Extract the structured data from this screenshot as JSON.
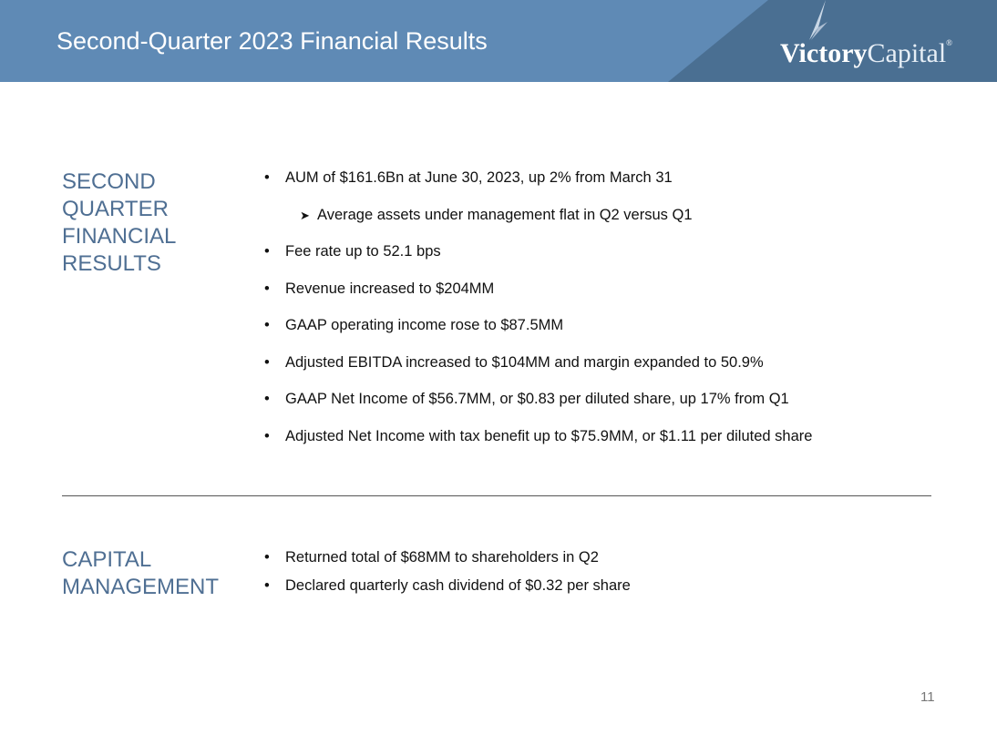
{
  "header": {
    "title": "Second-Quarter 2023 Financial Results",
    "logo_bold": "Victory",
    "logo_light": "Capital",
    "logo_mark": "®"
  },
  "sections": [
    {
      "label": "SECOND QUARTER FINANCIAL RESULTS",
      "bullets": [
        {
          "text": "AUM of $161.6Bn at June 30, 2023, up 2% from March 31",
          "level": 1
        },
        {
          "text": "Average assets under management flat in Q2 versus Q1",
          "level": 2
        },
        {
          "text": "Fee rate up to 52.1 bps",
          "level": 1
        },
        {
          "text": "Revenue increased to $204MM",
          "level": 1
        },
        {
          "text": "GAAP operating income rose to $87.5MM",
          "level": 1
        },
        {
          "text": "Adjusted EBITDA increased to $104MM and margin expanded to 50.9%",
          "level": 1
        },
        {
          "text": "GAAP Net Income of $56.7MM, or $0.83 per diluted share, up 17% from Q1",
          "level": 1
        },
        {
          "text": "Adjusted Net Income with tax benefit up to $75.9MM, or $1.11 per diluted share",
          "level": 1
        }
      ]
    },
    {
      "label": "CAPITAL MANAGEMENT",
      "bullets": [
        {
          "text": "Returned total of $68MM to shareholders in Q2",
          "level": 1
        },
        {
          "text": "Declared quarterly cash dividend of $0.32 per share",
          "level": 1
        }
      ]
    }
  ],
  "page_number": "11",
  "colors": {
    "header": "#5f8ab5",
    "header_dark": "#4a6f92",
    "section_label": "#4f6f93"
  }
}
